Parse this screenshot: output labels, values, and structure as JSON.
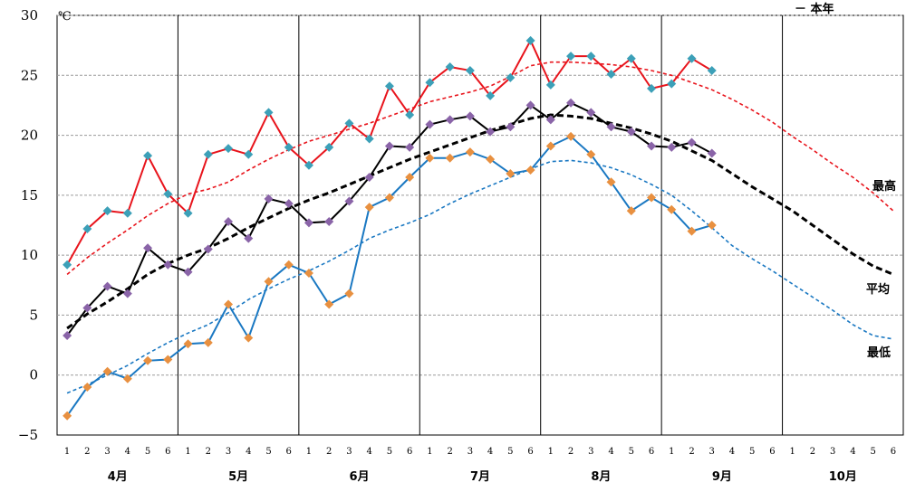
{
  "chart_data": {
    "type": "line",
    "unit_label": "℃",
    "legend_text": "－ 本年",
    "ylim": [
      -5,
      30
    ],
    "yticks": [
      -5,
      0,
      5,
      10,
      15,
      20,
      25,
      30
    ],
    "months": [
      "4月",
      "5月",
      "6月",
      "7月",
      "8月",
      "9月",
      "10月"
    ],
    "half_month_periods": [
      "1",
      "2",
      "3",
      "4",
      "5",
      "6"
    ],
    "series_labels": {
      "max": "最高",
      "mean": "平均",
      "min": "最低"
    },
    "colors": {
      "max_line": "#e8141c",
      "max_marker": "#3ca0b8",
      "mean_line": "#000000",
      "mean_marker": "#8a64a8",
      "min_line": "#1a78c2",
      "min_marker": "#e89040",
      "max_normal": "#e8141c",
      "mean_normal": "#000000",
      "min_normal": "#1a78c2"
    },
    "series": [
      {
        "key": "max",
        "kind": "this_year",
        "values": [
          9.2,
          12.2,
          13.7,
          13.5,
          18.3,
          15.1,
          13.5,
          18.4,
          18.9,
          18.4,
          21.9,
          19.0,
          17.5,
          19.0,
          21.0,
          19.7,
          24.1,
          21.7,
          24.4,
          25.7,
          25.4,
          23.3,
          24.8,
          27.9,
          24.2,
          26.6,
          26.6,
          25.1,
          26.4,
          23.9,
          24.3,
          26.4,
          25.4
        ]
      },
      {
        "key": "mean",
        "kind": "this_year",
        "values": [
          3.3,
          5.6,
          7.4,
          6.8,
          10.6,
          9.2,
          8.6,
          10.5,
          12.8,
          11.4,
          14.7,
          14.3,
          12.7,
          12.8,
          14.5,
          16.5,
          19.1,
          19.0,
          20.9,
          21.3,
          21.6,
          20.3,
          20.7,
          22.5,
          21.3,
          22.7,
          21.9,
          20.7,
          20.3,
          19.1,
          19.0,
          19.4,
          18.5
        ]
      },
      {
        "key": "min",
        "kind": "this_year",
        "values": [
          -3.4,
          -1.0,
          0.3,
          -0.3,
          1.2,
          1.3,
          2.6,
          2.7,
          5.9,
          3.1,
          7.8,
          9.2,
          8.5,
          5.9,
          6.8,
          14.0,
          14.8,
          16.5,
          18.1,
          18.1,
          18.6,
          18.0,
          16.8,
          17.1,
          19.1,
          19.9,
          18.4,
          16.1,
          13.7,
          14.8,
          13.8,
          12.0,
          12.5
        ]
      },
      {
        "key": "max",
        "kind": "normal",
        "values": [
          8.4,
          9.8,
          11.0,
          12.1,
          13.3,
          14.3,
          15.1,
          15.5,
          16.1,
          17.1,
          18.0,
          18.8,
          19.5,
          20.0,
          20.5,
          21.0,
          21.6,
          22.2,
          22.8,
          23.2,
          23.6,
          24.1,
          24.9,
          25.8,
          26.1,
          26.1,
          26.0,
          25.9,
          25.7,
          25.4,
          25.0,
          24.4,
          23.8,
          23.0,
          22.1,
          21.1,
          19.9,
          18.8,
          17.6,
          16.5,
          15.2,
          13.7
        ]
      },
      {
        "key": "mean",
        "kind": "normal",
        "values": [
          3.9,
          5.1,
          6.1,
          7.2,
          8.4,
          9.3,
          10.0,
          10.6,
          11.4,
          12.3,
          13.1,
          13.9,
          14.6,
          15.2,
          15.9,
          16.6,
          17.3,
          18.0,
          18.6,
          19.2,
          19.8,
          20.4,
          20.9,
          21.4,
          21.7,
          21.6,
          21.4,
          21.0,
          20.6,
          20.1,
          19.5,
          18.7,
          17.9,
          16.8,
          15.7,
          14.7,
          13.7,
          12.5,
          11.3,
          10.1,
          9.1,
          8.4
        ]
      },
      {
        "key": "min",
        "kind": "normal",
        "values": [
          -1.5,
          -0.8,
          0.0,
          0.8,
          1.8,
          2.7,
          3.5,
          4.2,
          5.2,
          6.3,
          7.2,
          8.0,
          8.7,
          9.5,
          10.4,
          11.4,
          12.1,
          12.7,
          13.4,
          14.3,
          15.1,
          15.8,
          16.5,
          17.2,
          17.8,
          17.9,
          17.7,
          17.3,
          16.7,
          15.9,
          15.0,
          13.7,
          12.3,
          10.8,
          9.7,
          8.7,
          7.6,
          6.5,
          5.4,
          4.2,
          3.3,
          3.0
        ]
      }
    ]
  }
}
